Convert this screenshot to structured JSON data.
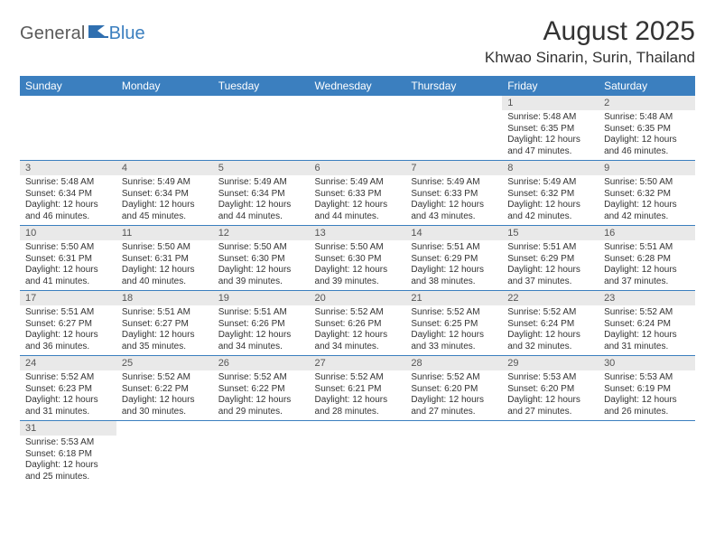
{
  "logo": {
    "text1": "General",
    "text2": "Blue"
  },
  "header": {
    "title": "August 2025",
    "location": "Khwao Sinarin, Surin, Thailand"
  },
  "colors": {
    "accent": "#3b7fbf",
    "header_text": "#ffffff",
    "daynum_bg": "#e9e9e9",
    "body_text": "#333333",
    "logo_gray": "#5a5a5a"
  },
  "typography": {
    "title_fontsize": 30,
    "location_fontsize": 17,
    "header_cell_fontsize": 12,
    "daynum_fontsize": 11,
    "body_fontsize": 10
  },
  "calendar": {
    "type": "table",
    "days_of_week": [
      "Sunday",
      "Monday",
      "Tuesday",
      "Wednesday",
      "Thursday",
      "Friday",
      "Saturday"
    ],
    "weeks": [
      [
        null,
        null,
        null,
        null,
        null,
        {
          "n": "1",
          "sunrise": "Sunrise: 5:48 AM",
          "sunset": "Sunset: 6:35 PM",
          "daylight": "Daylight: 12 hours and 47 minutes."
        },
        {
          "n": "2",
          "sunrise": "Sunrise: 5:48 AM",
          "sunset": "Sunset: 6:35 PM",
          "daylight": "Daylight: 12 hours and 46 minutes."
        }
      ],
      [
        {
          "n": "3",
          "sunrise": "Sunrise: 5:48 AM",
          "sunset": "Sunset: 6:34 PM",
          "daylight": "Daylight: 12 hours and 46 minutes."
        },
        {
          "n": "4",
          "sunrise": "Sunrise: 5:49 AM",
          "sunset": "Sunset: 6:34 PM",
          "daylight": "Daylight: 12 hours and 45 minutes."
        },
        {
          "n": "5",
          "sunrise": "Sunrise: 5:49 AM",
          "sunset": "Sunset: 6:34 PM",
          "daylight": "Daylight: 12 hours and 44 minutes."
        },
        {
          "n": "6",
          "sunrise": "Sunrise: 5:49 AM",
          "sunset": "Sunset: 6:33 PM",
          "daylight": "Daylight: 12 hours and 44 minutes."
        },
        {
          "n": "7",
          "sunrise": "Sunrise: 5:49 AM",
          "sunset": "Sunset: 6:33 PM",
          "daylight": "Daylight: 12 hours and 43 minutes."
        },
        {
          "n": "8",
          "sunrise": "Sunrise: 5:49 AM",
          "sunset": "Sunset: 6:32 PM",
          "daylight": "Daylight: 12 hours and 42 minutes."
        },
        {
          "n": "9",
          "sunrise": "Sunrise: 5:50 AM",
          "sunset": "Sunset: 6:32 PM",
          "daylight": "Daylight: 12 hours and 42 minutes."
        }
      ],
      [
        {
          "n": "10",
          "sunrise": "Sunrise: 5:50 AM",
          "sunset": "Sunset: 6:31 PM",
          "daylight": "Daylight: 12 hours and 41 minutes."
        },
        {
          "n": "11",
          "sunrise": "Sunrise: 5:50 AM",
          "sunset": "Sunset: 6:31 PM",
          "daylight": "Daylight: 12 hours and 40 minutes."
        },
        {
          "n": "12",
          "sunrise": "Sunrise: 5:50 AM",
          "sunset": "Sunset: 6:30 PM",
          "daylight": "Daylight: 12 hours and 39 minutes."
        },
        {
          "n": "13",
          "sunrise": "Sunrise: 5:50 AM",
          "sunset": "Sunset: 6:30 PM",
          "daylight": "Daylight: 12 hours and 39 minutes."
        },
        {
          "n": "14",
          "sunrise": "Sunrise: 5:51 AM",
          "sunset": "Sunset: 6:29 PM",
          "daylight": "Daylight: 12 hours and 38 minutes."
        },
        {
          "n": "15",
          "sunrise": "Sunrise: 5:51 AM",
          "sunset": "Sunset: 6:29 PM",
          "daylight": "Daylight: 12 hours and 37 minutes."
        },
        {
          "n": "16",
          "sunrise": "Sunrise: 5:51 AM",
          "sunset": "Sunset: 6:28 PM",
          "daylight": "Daylight: 12 hours and 37 minutes."
        }
      ],
      [
        {
          "n": "17",
          "sunrise": "Sunrise: 5:51 AM",
          "sunset": "Sunset: 6:27 PM",
          "daylight": "Daylight: 12 hours and 36 minutes."
        },
        {
          "n": "18",
          "sunrise": "Sunrise: 5:51 AM",
          "sunset": "Sunset: 6:27 PM",
          "daylight": "Daylight: 12 hours and 35 minutes."
        },
        {
          "n": "19",
          "sunrise": "Sunrise: 5:51 AM",
          "sunset": "Sunset: 6:26 PM",
          "daylight": "Daylight: 12 hours and 34 minutes."
        },
        {
          "n": "20",
          "sunrise": "Sunrise: 5:52 AM",
          "sunset": "Sunset: 6:26 PM",
          "daylight": "Daylight: 12 hours and 34 minutes."
        },
        {
          "n": "21",
          "sunrise": "Sunrise: 5:52 AM",
          "sunset": "Sunset: 6:25 PM",
          "daylight": "Daylight: 12 hours and 33 minutes."
        },
        {
          "n": "22",
          "sunrise": "Sunrise: 5:52 AM",
          "sunset": "Sunset: 6:24 PM",
          "daylight": "Daylight: 12 hours and 32 minutes."
        },
        {
          "n": "23",
          "sunrise": "Sunrise: 5:52 AM",
          "sunset": "Sunset: 6:24 PM",
          "daylight": "Daylight: 12 hours and 31 minutes."
        }
      ],
      [
        {
          "n": "24",
          "sunrise": "Sunrise: 5:52 AM",
          "sunset": "Sunset: 6:23 PM",
          "daylight": "Daylight: 12 hours and 31 minutes."
        },
        {
          "n": "25",
          "sunrise": "Sunrise: 5:52 AM",
          "sunset": "Sunset: 6:22 PM",
          "daylight": "Daylight: 12 hours and 30 minutes."
        },
        {
          "n": "26",
          "sunrise": "Sunrise: 5:52 AM",
          "sunset": "Sunset: 6:22 PM",
          "daylight": "Daylight: 12 hours and 29 minutes."
        },
        {
          "n": "27",
          "sunrise": "Sunrise: 5:52 AM",
          "sunset": "Sunset: 6:21 PM",
          "daylight": "Daylight: 12 hours and 28 minutes."
        },
        {
          "n": "28",
          "sunrise": "Sunrise: 5:52 AM",
          "sunset": "Sunset: 6:20 PM",
          "daylight": "Daylight: 12 hours and 27 minutes."
        },
        {
          "n": "29",
          "sunrise": "Sunrise: 5:53 AM",
          "sunset": "Sunset: 6:20 PM",
          "daylight": "Daylight: 12 hours and 27 minutes."
        },
        {
          "n": "30",
          "sunrise": "Sunrise: 5:53 AM",
          "sunset": "Sunset: 6:19 PM",
          "daylight": "Daylight: 12 hours and 26 minutes."
        }
      ],
      [
        {
          "n": "31",
          "sunrise": "Sunrise: 5:53 AM",
          "sunset": "Sunset: 6:18 PM",
          "daylight": "Daylight: 12 hours and 25 minutes."
        },
        null,
        null,
        null,
        null,
        null,
        null
      ]
    ]
  }
}
